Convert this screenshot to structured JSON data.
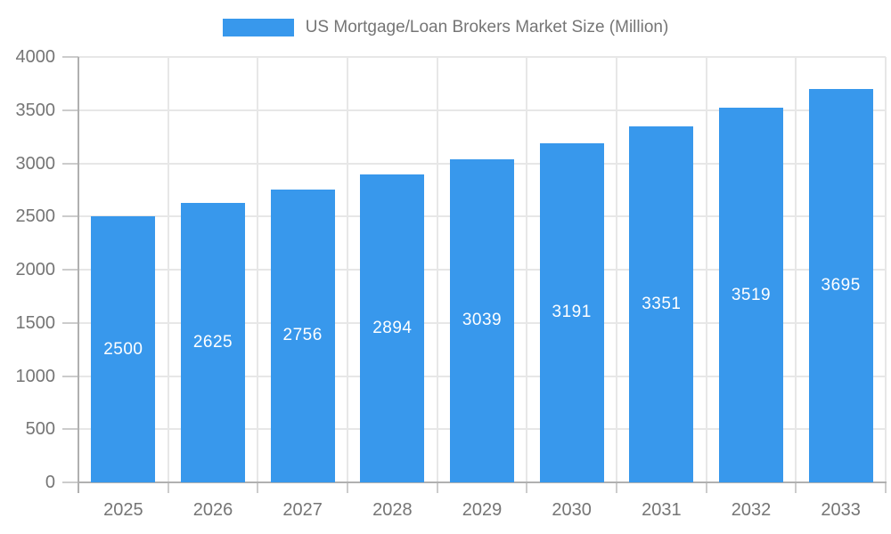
{
  "chart_data": {
    "type": "bar",
    "title": "US Mortgage/Loan Brokers Market Size (Million)",
    "legend_label": "US Mortgage/Loan Brokers Market Size (Million)",
    "legend_position": "top-center",
    "categories": [
      "2025",
      "2026",
      "2027",
      "2028",
      "2029",
      "2030",
      "2031",
      "2032",
      "2033"
    ],
    "series": [
      {
        "name": "US Mortgage/Loan Brokers Market Size (Million)",
        "values": [
          2500,
          2625,
          2756,
          2894,
          3039,
          3191,
          3351,
          3519,
          3695
        ]
      }
    ],
    "bar_value_labels": [
      "2500",
      "2625",
      "2756",
      "2894",
      "3039",
      "3191",
      "3351",
      "3519",
      "3695"
    ],
    "xlabel": "",
    "ylabel": "",
    "ylim": [
      0,
      4000
    ],
    "ytick_step": 500,
    "yticks": [
      0,
      500,
      1000,
      1500,
      2000,
      2500,
      3000,
      3500,
      4000
    ],
    "grid": true,
    "colors": {
      "bar": "#3898ec",
      "bar_label": "#ffffff",
      "axis_text": "#757575",
      "grid_line": "#e7e7e7",
      "axis_line": "#b0b0b0",
      "tick_line": "#cccccc",
      "background": "#ffffff"
    }
  }
}
